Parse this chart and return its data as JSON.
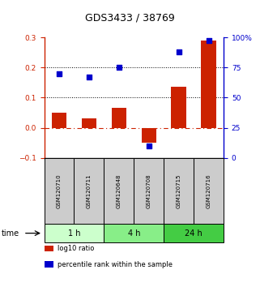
{
  "title": "GDS3433 / 38769",
  "categories": [
    "GSM120710",
    "GSM120711",
    "GSM120648",
    "GSM120708",
    "GSM120715",
    "GSM120716"
  ],
  "log10_ratio": [
    0.05,
    0.03,
    0.065,
    -0.05,
    0.135,
    0.29
  ],
  "percentile_rank_pct": [
    70,
    67,
    75,
    10,
    88,
    97
  ],
  "bar_color": "#cc2200",
  "dot_color": "#0000cc",
  "ylim_left": [
    -0.1,
    0.3
  ],
  "ylim_right": [
    0,
    100
  ],
  "yticks_left": [
    -0.1,
    0.0,
    0.1,
    0.2,
    0.3
  ],
  "yticks_right": [
    0,
    25,
    50,
    75,
    100
  ],
  "ytick_labels_right": [
    "0",
    "25",
    "50",
    "75",
    "100%"
  ],
  "hlines_black": [
    0.1,
    0.2
  ],
  "hline_red": 0.0,
  "time_groups": [
    {
      "label": "1 h",
      "start": 0,
      "end": 2,
      "color": "#ccffcc"
    },
    {
      "label": "4 h",
      "start": 2,
      "end": 4,
      "color": "#88ee88"
    },
    {
      "label": "24 h",
      "start": 4,
      "end": 6,
      "color": "#44cc44"
    }
  ],
  "legend_items": [
    {
      "label": "log10 ratio",
      "color": "#cc2200"
    },
    {
      "label": "percentile rank within the sample",
      "color": "#0000cc"
    }
  ],
  "bar_width": 0.5,
  "dot_size": 18,
  "sample_box_color": "#cccccc",
  "plot_bg": "#ffffff"
}
